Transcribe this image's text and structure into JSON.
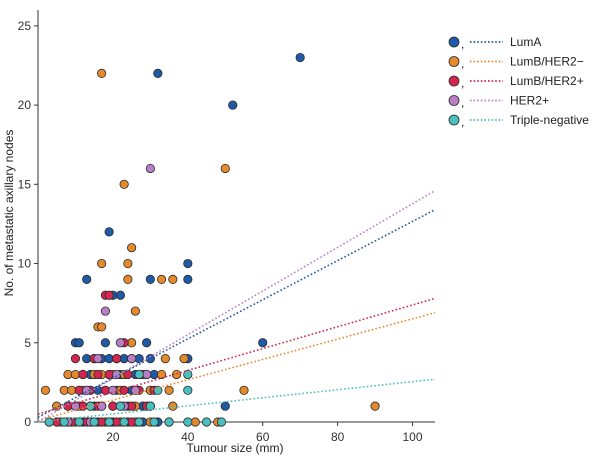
{
  "chart_data": {
    "type": "scatter",
    "title": "",
    "xlabel": "Tumour size (mm)",
    "ylabel": "No. of metastatic axillary nodes",
    "xlim": [
      0,
      106
    ],
    "ylim": [
      0,
      26
    ],
    "xticks": [
      20,
      40,
      60,
      80,
      100
    ],
    "yticks": [
      0,
      5,
      10,
      15,
      20,
      25
    ],
    "legend_position": "top-right",
    "grid": false,
    "series": [
      {
        "name": "LumA",
        "color": "#1f5aa6",
        "trend": [
          [
            0,
            0.3
          ],
          [
            106,
            13.4
          ]
        ],
        "points": [
          [
            70,
            23
          ],
          [
            52,
            20
          ],
          [
            32,
            22
          ],
          [
            19,
            12
          ],
          [
            40,
            10
          ],
          [
            30,
            9
          ],
          [
            40,
            9
          ],
          [
            20,
            8
          ],
          [
            22,
            8
          ],
          [
            13,
            9
          ],
          [
            18,
            5
          ],
          [
            29,
            5
          ],
          [
            60,
            5
          ],
          [
            10,
            5
          ],
          [
            11,
            5
          ],
          [
            13,
            4
          ],
          [
            15,
            4
          ],
          [
            17,
            4
          ],
          [
            19,
            4
          ],
          [
            21,
            4
          ],
          [
            23,
            4
          ],
          [
            25,
            4
          ],
          [
            27,
            4
          ],
          [
            30,
            4
          ],
          [
            40,
            4
          ],
          [
            14,
            3
          ],
          [
            19,
            3
          ],
          [
            22,
            3
          ],
          [
            26,
            3
          ],
          [
            31,
            3
          ],
          [
            11,
            2
          ],
          [
            13,
            2
          ],
          [
            16,
            2
          ],
          [
            21,
            2
          ],
          [
            25,
            2
          ],
          [
            30,
            2
          ],
          [
            10,
            1
          ],
          [
            15,
            1
          ],
          [
            20,
            1
          ],
          [
            24,
            1
          ],
          [
            28,
            1
          ],
          [
            50,
            1
          ],
          [
            8,
            0
          ],
          [
            12,
            0
          ],
          [
            16,
            0
          ],
          [
            20,
            0
          ],
          [
            24,
            0
          ],
          [
            28,
            0
          ],
          [
            32,
            0
          ]
        ]
      },
      {
        "name": "LumB/HER2−",
        "color": "#e58a2c",
        "trend": [
          [
            0,
            0.1
          ],
          [
            106,
            6.9
          ]
        ],
        "points": [
          [
            17,
            22
          ],
          [
            50,
            16
          ],
          [
            23,
            15
          ],
          [
            25,
            11
          ],
          [
            17,
            10
          ],
          [
            24,
            10
          ],
          [
            24,
            9
          ],
          [
            33,
            9
          ],
          [
            36,
            9
          ],
          [
            26,
            7
          ],
          [
            16,
            6
          ],
          [
            17,
            6
          ],
          [
            25,
            5
          ],
          [
            34,
            4
          ],
          [
            39,
            4
          ],
          [
            8,
            3
          ],
          [
            10,
            3
          ],
          [
            12,
            3
          ],
          [
            15,
            3
          ],
          [
            17,
            3
          ],
          [
            20,
            3
          ],
          [
            23,
            3
          ],
          [
            27,
            3
          ],
          [
            29,
            3
          ],
          [
            33,
            3
          ],
          [
            37,
            3
          ],
          [
            7,
            2
          ],
          [
            9,
            2
          ],
          [
            12,
            2
          ],
          [
            14,
            2
          ],
          [
            18,
            2
          ],
          [
            22,
            2
          ],
          [
            26,
            2
          ],
          [
            30,
            2
          ],
          [
            35,
            2
          ],
          [
            55,
            2
          ],
          [
            2,
            2
          ],
          [
            5,
            1
          ],
          [
            8,
            1
          ],
          [
            11,
            1
          ],
          [
            14,
            1
          ],
          [
            17,
            1
          ],
          [
            22,
            1
          ],
          [
            26,
            1
          ],
          [
            30,
            1
          ],
          [
            36,
            1
          ],
          [
            90,
            1
          ],
          [
            3,
            0
          ],
          [
            6,
            0
          ],
          [
            10,
            0
          ],
          [
            14,
            0
          ],
          [
            18,
            0
          ],
          [
            22,
            0
          ],
          [
            26,
            0
          ],
          [
            30,
            0
          ],
          [
            35,
            0
          ],
          [
            42,
            0
          ],
          [
            48,
            0
          ]
        ]
      },
      {
        "name": "LumB/HER2+",
        "color": "#d22650",
        "trend": [
          [
            0,
            0.5
          ],
          [
            106,
            7.8
          ]
        ],
        "points": [
          [
            18,
            8
          ],
          [
            19,
            8
          ],
          [
            23,
            5
          ],
          [
            10,
            4
          ],
          [
            15,
            4
          ],
          [
            21,
            4
          ],
          [
            12,
            3
          ],
          [
            16,
            3
          ],
          [
            19,
            3
          ],
          [
            24,
            3
          ],
          [
            28,
            3
          ],
          [
            11,
            2
          ],
          [
            14,
            2
          ],
          [
            18,
            2
          ],
          [
            23,
            2
          ],
          [
            27,
            2
          ],
          [
            31,
            2
          ],
          [
            8,
            1
          ],
          [
            12,
            1
          ],
          [
            16,
            1
          ],
          [
            20,
            1
          ],
          [
            25,
            1
          ],
          [
            29,
            1
          ],
          [
            5,
            0
          ],
          [
            9,
            0
          ],
          [
            13,
            0
          ],
          [
            17,
            0
          ],
          [
            21,
            0
          ],
          [
            25,
            0
          ]
        ]
      },
      {
        "name": "HER2+",
        "color": "#b97fc6",
        "trend": [
          [
            0,
            0.0
          ],
          [
            106,
            14.6
          ]
        ],
        "points": [
          [
            30,
            16
          ],
          [
            18,
            7
          ],
          [
            22,
            5
          ],
          [
            16,
            4
          ],
          [
            25,
            4
          ],
          [
            21,
            3
          ],
          [
            29,
            3
          ],
          [
            13,
            2
          ],
          [
            20,
            2
          ],
          [
            26,
            2
          ],
          [
            10,
            1
          ],
          [
            17,
            1
          ],
          [
            23,
            1
          ],
          [
            8,
            0
          ],
          [
            14,
            0
          ],
          [
            19,
            0
          ],
          [
            27,
            0
          ]
        ]
      },
      {
        "name": "Triple-negative",
        "color": "#4bbfbf",
        "trend": [
          [
            0,
            0.0
          ],
          [
            106,
            2.7
          ]
        ],
        "points": [
          [
            40,
            3
          ],
          [
            27,
            3
          ],
          [
            40,
            2
          ],
          [
            32,
            2
          ],
          [
            30,
            1
          ],
          [
            22,
            1
          ],
          [
            14,
            1
          ],
          [
            3,
            0
          ],
          [
            7,
            0
          ],
          [
            11,
            0
          ],
          [
            15,
            0
          ],
          [
            19,
            0
          ],
          [
            23,
            0
          ],
          [
            27,
            0
          ],
          [
            31,
            0
          ],
          [
            35,
            0
          ],
          [
            40,
            0
          ],
          [
            45,
            0
          ],
          [
            49,
            0
          ]
        ]
      }
    ]
  }
}
